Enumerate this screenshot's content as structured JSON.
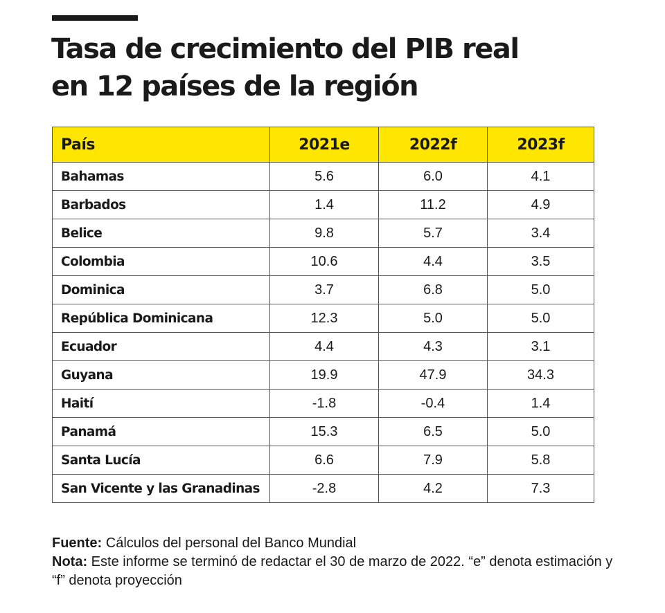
{
  "title": {
    "line1": "Tasa de crecimiento del PIB real",
    "line2": "en 12 países de la región"
  },
  "table": {
    "headers": [
      "País",
      "2021e",
      "2022f",
      "2023f"
    ],
    "rows": [
      [
        "Bahamas",
        "5.6",
        "6.0",
        "4.1"
      ],
      [
        "Barbados",
        "1.4",
        "11.2",
        "4.9"
      ],
      [
        "Belice",
        "9.8",
        "5.7",
        "3.4"
      ],
      [
        "Colombia",
        "10.6",
        "4.4",
        "3.5"
      ],
      [
        "Dominica",
        "3.7",
        "6.8",
        "5.0"
      ],
      [
        "República Dominicana",
        "12.3",
        "5.0",
        "5.0"
      ],
      [
        "Ecuador",
        "4.4",
        "4.3",
        "3.1"
      ],
      [
        "Guyana",
        "19.9",
        "47.9",
        "34.3"
      ],
      [
        "Haití",
        "-1.8",
        "-0.4",
        "1.4"
      ],
      [
        "Panamá",
        "15.3",
        "6.5",
        "5.0"
      ],
      [
        "Santa Lucía",
        "6.6",
        "7.9",
        "5.8"
      ],
      [
        "San Vicente y las Granadinas",
        "-2.8",
        "4.2",
        "7.3"
      ]
    ]
  },
  "footer": {
    "source_label": "Fuente:",
    "source_text": " Cálculos del personal del Banco Mundial",
    "note_label": "Nota:",
    "note_text": " Este informe se terminó de redactar el 30 de marzo de 2022. “e” denota estimación y “f” denota proyección"
  },
  "colors": {
    "header_background": "#ffe600",
    "text": "#1a1a1a",
    "border": "#555555"
  }
}
